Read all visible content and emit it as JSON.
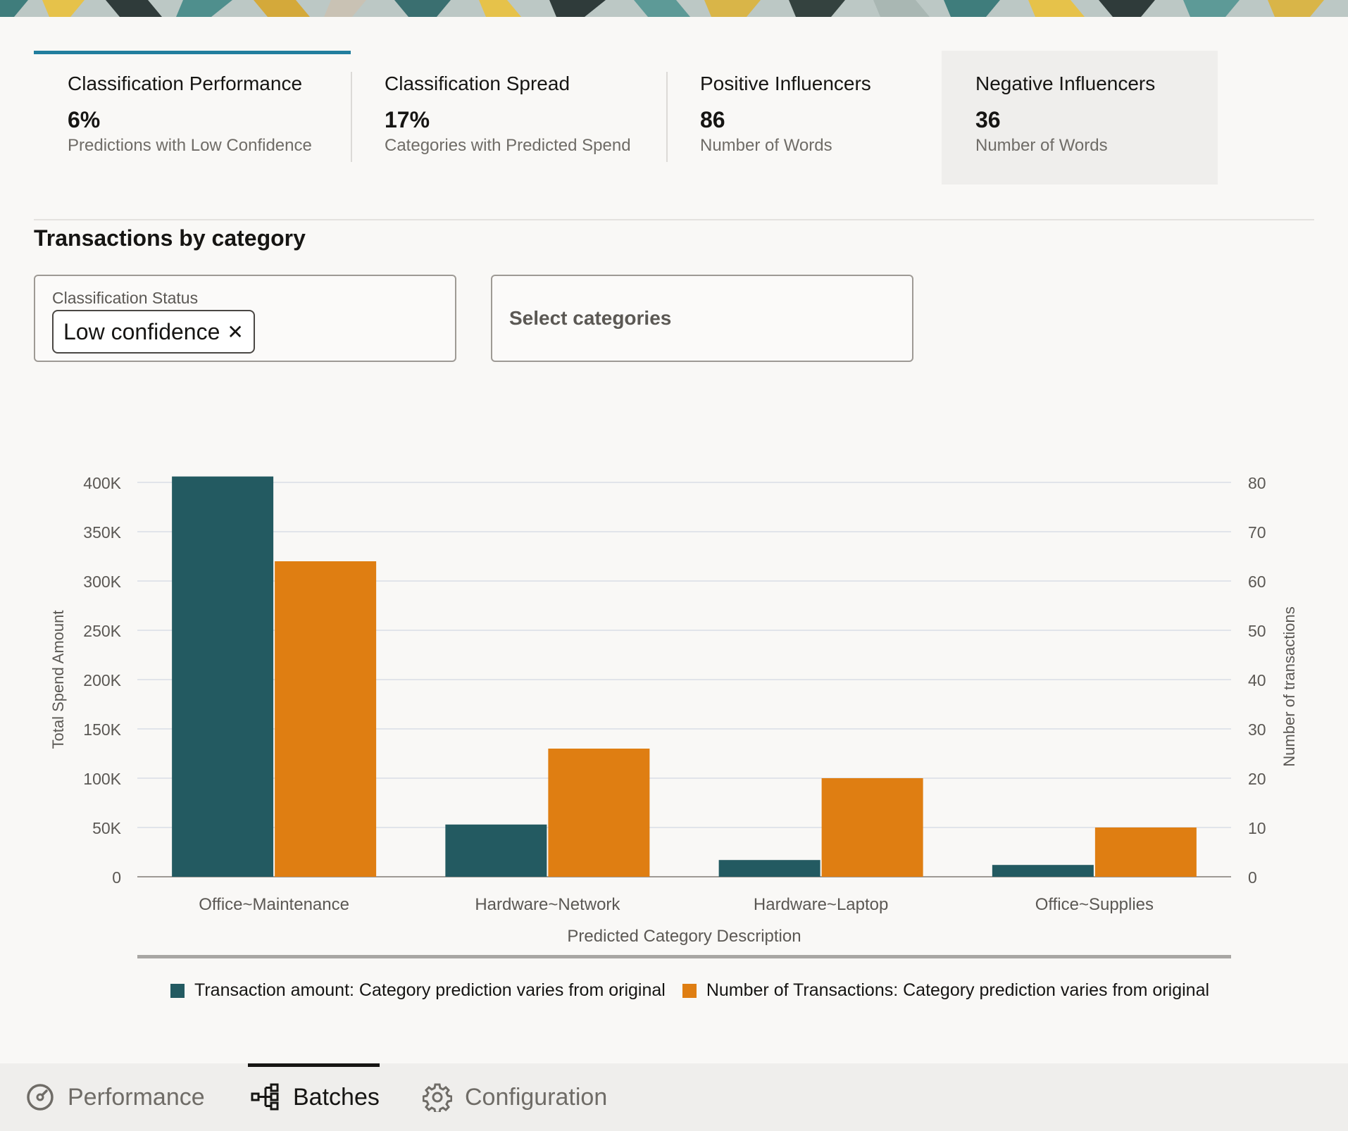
{
  "tiles": [
    {
      "title": "Classification Performance",
      "value": "6%",
      "subtitle": "Predictions with Low Confidence"
    },
    {
      "title": "Classification Spread",
      "value": "17%",
      "subtitle": "Categories with Predicted Spend"
    },
    {
      "title": "Positive Influencers",
      "value": "86",
      "subtitle": "Number of Words"
    },
    {
      "title": "Negative Influencers",
      "value": "36",
      "subtitle": "Number of Words"
    }
  ],
  "section": {
    "title": "Transactions by category"
  },
  "filters": {
    "status_label": "Classification Status",
    "status_chip": "Low confidence",
    "categories_placeholder": "Select categories"
  },
  "colors": {
    "teal": "#235a61",
    "orange": "#df7e12",
    "accent": "#227e9e"
  },
  "chart_data": {
    "type": "bar",
    "categories": [
      "Office~Maintenance",
      "Hardware~Network",
      "Hardware~Laptop",
      "Office~Supplies"
    ],
    "series": [
      {
        "name": "Transaction amount: Category prediction varies from original",
        "axis": "left",
        "values": [
          406000,
          53000,
          17000,
          12000
        ]
      },
      {
        "name": "Number of Transactions: Category prediction varies from original",
        "axis": "right",
        "values": [
          64,
          26,
          20,
          10
        ]
      }
    ],
    "xlabel": "Predicted Category Description",
    "ylabel": "Total Spend Amount",
    "y2label": "Number of transactions",
    "ylim": [
      0,
      400000
    ],
    "y2lim": [
      0,
      80
    ],
    "yticks": [
      "0",
      "50K",
      "100K",
      "150K",
      "200K",
      "250K",
      "300K",
      "350K",
      "400K"
    ],
    "y2ticks": [
      "0",
      "10",
      "20",
      "30",
      "40",
      "50",
      "60",
      "70",
      "80"
    ],
    "grid": true,
    "legend": "bottom"
  },
  "nav": [
    {
      "label": "Performance",
      "icon": "gauge-icon",
      "active": false
    },
    {
      "label": "Batches",
      "icon": "hierarchy-icon",
      "active": true
    },
    {
      "label": "Configuration",
      "icon": "gear-icon",
      "active": false
    }
  ]
}
